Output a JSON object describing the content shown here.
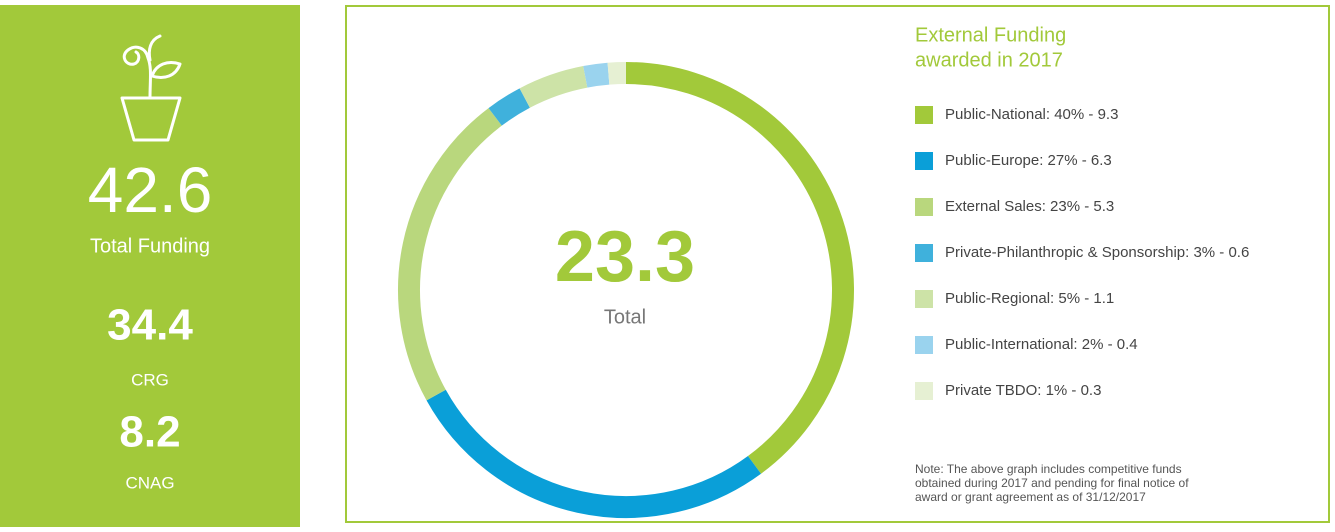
{
  "summary": {
    "total_funding": "42.6",
    "total_funding_label": "Total Funding",
    "crg": "34.4",
    "crg_label": "CRG",
    "cnag": "8.2",
    "cnag_label": "CNAG"
  },
  "chart_data": {
    "type": "donut",
    "title": [
      "External Funding",
      "awarded in 2017"
    ],
    "center_value": "23.3",
    "center_label": "Total",
    "categories": [
      "Public-National: 40% - 9.3",
      "Public-Europe: 27% - 6.3",
      "External Sales: 23% - 5.3",
      "Private-Philanthropic & Sponsorship: 3% - 0.6",
      "Public-Regional: 5% - 1.1",
      "Public-International: 2% - 0.4",
      "Private TBDO: 1% -  0.3"
    ],
    "values": [
      9.3,
      6.3,
      5.3,
      0.6,
      1.1,
      0.4,
      0.3
    ],
    "colors": [
      "#a2c93a",
      "#0a9fd8",
      "#b9d77d",
      "#3fb1dc",
      "#cde3a7",
      "#9ad3ee",
      "#e6f0d3"
    ],
    "note": [
      "Note: The above graph includes competitive funds",
      "obtained during 2017 and pending for final notice of",
      "award or grant agreement as of 31/12/2017"
    ]
  }
}
